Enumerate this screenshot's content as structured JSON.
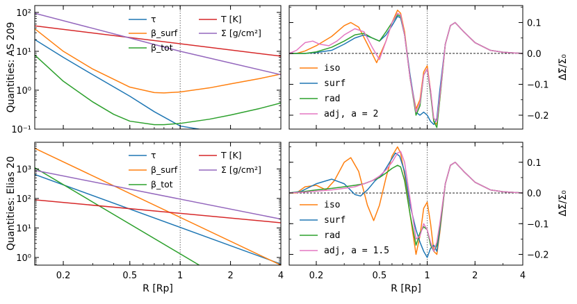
{
  "colors": {
    "tau": "#1f77b4",
    "beta_surf": "#ff7f0e",
    "beta_tot": "#2ca02c",
    "T": "#d62728",
    "Sigma": "#9467bd",
    "iso": "#ff7f0e",
    "surf": "#1f77b4",
    "rad": "#2ca02c",
    "adj": "#e377c2"
  },
  "chart_data": [
    {
      "id": "quantities-as209",
      "type": "line",
      "xscale": "log",
      "yscale": "log",
      "xlim": [
        0.135,
        4.0
      ],
      "ylim": [
        0.1,
        150
      ],
      "ylabel": "Quantities: AS 209",
      "xlabel": "",
      "yticks": [
        {
          "v": 0.1,
          "label": "10⁻¹"
        },
        {
          "v": 1,
          "label": "10⁰"
        },
        {
          "v": 10,
          "label": "10¹"
        },
        {
          "v": 100,
          "label": "10²"
        }
      ],
      "xticks": [],
      "vline": 1,
      "legend": [
        "τ",
        "β_surf",
        "β_tot",
        "T [K]",
        "Σ [g/cm²]"
      ],
      "series": [
        {
          "key": "tau",
          "name": "τ",
          "x": [
            0.135,
            0.2,
            0.3,
            0.5,
            0.7,
            1.0,
            1.5
          ],
          "y": [
            20,
            7,
            2.5,
            0.7,
            0.28,
            0.12,
            0.09
          ]
        },
        {
          "key": "beta_surf",
          "name": "β_surf",
          "x": [
            0.135,
            0.2,
            0.3,
            0.5,
            0.7,
            0.8,
            1.0,
            1.5,
            2.0,
            3.0,
            4.0
          ],
          "y": [
            38,
            10,
            3.5,
            1.2,
            0.87,
            0.85,
            0.9,
            1.15,
            1.45,
            2.0,
            2.6
          ]
        },
        {
          "key": "beta_tot",
          "name": "β_tot",
          "x": [
            0.135,
            0.2,
            0.3,
            0.4,
            0.5,
            0.7,
            0.8,
            1.0,
            1.5,
            2.0,
            3.0,
            4.0
          ],
          "y": [
            8,
            1.7,
            0.5,
            0.24,
            0.16,
            0.13,
            0.13,
            0.14,
            0.18,
            0.23,
            0.34,
            0.47
          ]
        },
        {
          "key": "T",
          "name": "T [K]",
          "x": [
            0.135,
            4.0
          ],
          "y": [
            45,
            7.5
          ]
        },
        {
          "key": "Sigma",
          "name": "Σ [g/cm²]",
          "x": [
            0.135,
            0.5,
            1.0,
            2.0,
            4.0
          ],
          "y": [
            95,
            22,
            10,
            5,
            2.5
          ]
        }
      ]
    },
    {
      "id": "delta-sigma-as209",
      "type": "line",
      "xscale": "log",
      "yscale": "linear",
      "xlim": [
        0.135,
        4.0
      ],
      "ylim": [
        -0.245,
        0.155
      ],
      "ylabel": "ΔΣ̃/Σ₀",
      "xlabel": "",
      "yticks": [
        {
          "v": 0.1,
          "label": "0.1"
        },
        {
          "v": 0.0,
          "label": "0.0"
        },
        {
          "v": -0.1,
          "label": "−0.1"
        },
        {
          "v": -0.2,
          "label": "−0.2"
        }
      ],
      "xticks": [],
      "vline": 1,
      "hline": 0,
      "legend": [
        "iso",
        "surf",
        "rad",
        "adj, a = 2"
      ],
      "series": [
        {
          "key": "iso",
          "name": "iso",
          "x": [
            0.135,
            0.15,
            0.17,
            0.2,
            0.25,
            0.3,
            0.33,
            0.37,
            0.42,
            0.48,
            0.55,
            0.6,
            0.65,
            0.68,
            0.72,
            0.78,
            0.85,
            0.9,
            0.95,
            1.0,
            1.05,
            1.1,
            1.15,
            1.2,
            1.3,
            1.4,
            1.5,
            1.7,
            2.0,
            2.5,
            3.0,
            4.0
          ],
          "y": [
            0.0,
            0.0,
            0.008,
            0.025,
            0.055,
            0.09,
            0.1,
            0.085,
            0.03,
            -0.03,
            0.04,
            0.1,
            0.14,
            0.13,
            0.07,
            -0.08,
            -0.18,
            -0.15,
            -0.06,
            -0.04,
            -0.12,
            -0.22,
            -0.23,
            -0.15,
            0.03,
            0.09,
            0.1,
            0.07,
            0.035,
            0.01,
            0.004,
            0.0
          ]
        },
        {
          "key": "surf",
          "name": "surf",
          "x": [
            0.135,
            0.17,
            0.2,
            0.25,
            0.3,
            0.35,
            0.4,
            0.45,
            0.5,
            0.55,
            0.6,
            0.65,
            0.68,
            0.72,
            0.78,
            0.85,
            0.9,
            0.95,
            1.0,
            1.05,
            1.1,
            1.15,
            1.2,
            1.3,
            1.4,
            1.5,
            1.7,
            2.0,
            2.5,
            3.0,
            4.0
          ],
          "y": [
            0.0,
            0.0,
            0.003,
            0.01,
            0.03,
            0.05,
            0.06,
            0.05,
            0.04,
            0.06,
            0.09,
            0.12,
            0.115,
            0.06,
            -0.07,
            -0.19,
            -0.2,
            -0.19,
            -0.2,
            -0.22,
            -0.23,
            -0.21,
            -0.12,
            0.03,
            0.09,
            0.1,
            0.07,
            0.035,
            0.01,
            0.004,
            0.0
          ]
        },
        {
          "key": "rad",
          "name": "rad",
          "x": [
            0.135,
            0.17,
            0.2,
            0.25,
            0.3,
            0.35,
            0.4,
            0.45,
            0.5,
            0.55,
            0.6,
            0.65,
            0.68,
            0.72,
            0.78,
            0.85,
            0.9,
            0.95,
            1.0,
            1.05,
            1.1,
            1.15,
            1.2,
            1.3,
            1.4,
            1.5,
            1.7,
            2.0,
            2.5,
            3.0,
            4.0
          ],
          "y": [
            0.0,
            0.0,
            0.005,
            0.02,
            0.04,
            0.06,
            0.065,
            0.05,
            0.04,
            0.07,
            0.1,
            0.125,
            0.12,
            0.06,
            -0.08,
            -0.2,
            -0.17,
            -0.07,
            -0.05,
            -0.13,
            -0.22,
            -0.24,
            -0.15,
            0.03,
            0.09,
            0.1,
            0.07,
            0.035,
            0.01,
            0.004,
            0.0
          ]
        },
        {
          "key": "adj",
          "name": "adj, a = 2",
          "x": [
            0.135,
            0.15,
            0.17,
            0.19,
            0.21,
            0.24,
            0.27,
            0.3,
            0.35,
            0.4,
            0.45,
            0.5,
            0.55,
            0.6,
            0.65,
            0.68,
            0.72,
            0.78,
            0.85,
            0.9,
            0.95,
            1.0,
            1.05,
            1.1,
            1.15,
            1.2,
            1.3,
            1.4,
            1.5,
            1.7,
            2.0,
            2.5,
            3.0,
            4.0
          ],
          "y": [
            0.0,
            0.01,
            0.035,
            0.04,
            0.03,
            0.025,
            0.04,
            0.06,
            0.08,
            0.07,
            0.02,
            -0.02,
            0.04,
            0.1,
            0.13,
            0.125,
            0.06,
            -0.08,
            -0.19,
            -0.16,
            -0.07,
            -0.05,
            -0.12,
            -0.21,
            -0.22,
            -0.14,
            0.03,
            0.09,
            0.1,
            0.07,
            0.035,
            0.01,
            0.004,
            0.0
          ]
        }
      ]
    },
    {
      "id": "quantities-elias20",
      "type": "line",
      "xscale": "log",
      "yscale": "log",
      "xlim": [
        0.135,
        4.0
      ],
      "ylim": [
        0.55,
        8000
      ],
      "ylabel": "Quantities: Elias 20",
      "xlabel": "R [Rp]",
      "yticks": [
        {
          "v": 1,
          "label": "10⁰"
        },
        {
          "v": 10,
          "label": "10¹"
        },
        {
          "v": 100,
          "label": "10²"
        },
        {
          "v": 1000,
          "label": "10³"
        }
      ],
      "xticks": [
        {
          "v": 0.2,
          "label": "0.2"
        },
        {
          "v": 0.5,
          "label": "0.5"
        },
        {
          "v": 1,
          "label": "1"
        },
        {
          "v": 2,
          "label": "2"
        },
        {
          "v": 4,
          "label": "4"
        }
      ],
      "vline": 1,
      "legend": [
        "τ",
        "β_surf",
        "β_tot",
        "T [K]",
        "Σ [g/cm²]"
      ],
      "series": [
        {
          "key": "tau",
          "name": "τ",
          "x": [
            0.135,
            4.0
          ],
          "y": [
            650,
            0.6
          ]
        },
        {
          "key": "beta_surf",
          "name": "β_surf",
          "x": [
            0.135,
            4.0
          ],
          "y": [
            5000,
            0.55
          ]
        },
        {
          "key": "beta_tot",
          "name": "β_tot",
          "x": [
            0.135,
            1.3
          ],
          "y": [
            1100,
            0.55
          ]
        },
        {
          "key": "T",
          "name": "T [K]",
          "x": [
            0.135,
            4.0
          ],
          "y": [
            90,
            15
          ]
        },
        {
          "key": "Sigma",
          "name": "Σ [g/cm²]",
          "x": [
            0.135,
            4.0
          ],
          "y": [
            900,
            20
          ]
        }
      ]
    },
    {
      "id": "delta-sigma-elias20",
      "type": "line",
      "xscale": "log",
      "yscale": "linear",
      "xlim": [
        0.135,
        4.0
      ],
      "ylim": [
        -0.235,
        0.165
      ],
      "ylabel": "ΔΣ̃/Σ₀",
      "xlabel": "R [Rp]",
      "yticks": [
        {
          "v": 0.1,
          "label": "0.1"
        },
        {
          "v": 0.0,
          "label": "0.0"
        },
        {
          "v": -0.1,
          "label": "−0.1"
        },
        {
          "v": -0.2,
          "label": "−0.2"
        }
      ],
      "xticks": [
        {
          "v": 0.2,
          "label": "0.2"
        },
        {
          "v": 0.5,
          "label": "0.5"
        },
        {
          "v": 1,
          "label": "1"
        },
        {
          "v": 2,
          "label": "2"
        },
        {
          "v": 4,
          "label": "4"
        }
      ],
      "vline": 1,
      "hline": 0,
      "legend": [
        "iso",
        "surf",
        "rad",
        "adj, a = 1.5"
      ],
      "series": [
        {
          "key": "iso",
          "name": "iso",
          "x": [
            0.135,
            0.15,
            0.17,
            0.2,
            0.23,
            0.26,
            0.3,
            0.33,
            0.37,
            0.42,
            0.46,
            0.5,
            0.55,
            0.6,
            0.65,
            0.68,
            0.72,
            0.78,
            0.85,
            0.9,
            0.95,
            1.0,
            1.05,
            1.1,
            1.15,
            1.2,
            1.3,
            1.4,
            1.5,
            1.7,
            2.0,
            2.5,
            3.0,
            4.0
          ],
          "y": [
            0.0,
            0.0,
            0.02,
            0.025,
            0.01,
            0.04,
            0.1,
            0.115,
            0.07,
            -0.04,
            -0.09,
            -0.04,
            0.05,
            0.12,
            0.15,
            0.13,
            0.06,
            -0.07,
            -0.2,
            -0.14,
            -0.05,
            -0.03,
            -0.1,
            -0.19,
            -0.2,
            -0.13,
            0.03,
            0.09,
            0.1,
            0.07,
            0.035,
            0.01,
            0.004,
            0.0
          ]
        },
        {
          "key": "surf",
          "name": "surf",
          "x": [
            0.135,
            0.16,
            0.2,
            0.25,
            0.3,
            0.35,
            0.38,
            0.42,
            0.47,
            0.52,
            0.58,
            0.63,
            0.67,
            0.72,
            0.78,
            0.85,
            0.9,
            0.95,
            1.0,
            1.05,
            1.1,
            1.15,
            1.2,
            1.3,
            1.4,
            1.5,
            1.7,
            2.0,
            2.5,
            3.0,
            4.0
          ],
          "y": [
            0.0,
            0.005,
            0.03,
            0.045,
            0.03,
            -0.005,
            -0.01,
            0.01,
            0.04,
            0.06,
            0.1,
            0.13,
            0.12,
            0.07,
            -0.04,
            -0.12,
            -0.16,
            -0.19,
            -0.21,
            -0.18,
            -0.17,
            -0.19,
            -0.12,
            0.03,
            0.09,
            0.1,
            0.07,
            0.035,
            0.01,
            0.004,
            0.0
          ]
        },
        {
          "key": "rad",
          "name": "rad",
          "x": [
            0.135,
            0.17,
            0.2,
            0.25,
            0.3,
            0.35,
            0.4,
            0.45,
            0.5,
            0.55,
            0.6,
            0.65,
            0.68,
            0.72,
            0.78,
            0.85,
            0.9,
            0.95,
            1.0,
            1.05,
            1.1,
            1.15,
            1.2,
            1.3,
            1.4,
            1.5,
            1.7,
            2.0,
            2.5,
            3.0,
            4.0
          ],
          "y": [
            0.0,
            0.005,
            0.01,
            0.015,
            0.02,
            0.025,
            0.03,
            0.04,
            0.05,
            0.065,
            0.08,
            0.09,
            0.085,
            0.04,
            -0.07,
            -0.17,
            -0.13,
            -0.11,
            -0.12,
            -0.17,
            -0.19,
            -0.17,
            -0.11,
            0.03,
            0.09,
            0.1,
            0.07,
            0.035,
            0.01,
            0.004,
            0.0
          ]
        },
        {
          "key": "adj",
          "name": "adj, a = 1.5",
          "x": [
            0.135,
            0.17,
            0.2,
            0.25,
            0.3,
            0.35,
            0.4,
            0.45,
            0.5,
            0.55,
            0.6,
            0.65,
            0.68,
            0.72,
            0.78,
            0.85,
            0.9,
            0.95,
            1.0,
            1.05,
            1.1,
            1.15,
            1.2,
            1.3,
            1.4,
            1.5,
            1.7,
            2.0,
            2.5,
            3.0,
            4.0
          ],
          "y": [
            0.0,
            0.003,
            0.006,
            0.01,
            0.015,
            0.02,
            0.03,
            0.04,
            0.055,
            0.075,
            0.1,
            0.13,
            0.135,
            0.1,
            -0.02,
            -0.15,
            -0.14,
            -0.1,
            -0.12,
            -0.16,
            -0.19,
            -0.16,
            -0.1,
            0.03,
            0.09,
            0.1,
            0.07,
            0.035,
            0.01,
            0.004,
            0.0
          ]
        }
      ]
    }
  ]
}
